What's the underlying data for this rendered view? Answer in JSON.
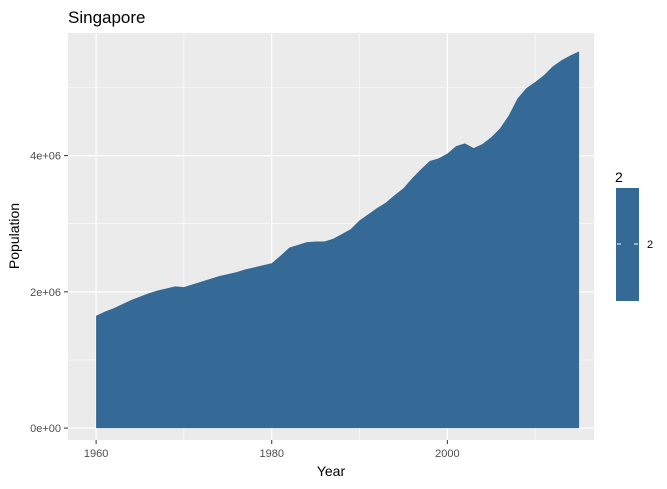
{
  "chart_data": {
    "type": "area",
    "title": "Singapore",
    "xlabel": "Year",
    "ylabel": "Population",
    "xlim": [
      1956.8,
      2016.7
    ],
    "ylim": [
      -175000,
      5800000
    ],
    "x_ticks": [
      1960,
      1980,
      2000
    ],
    "x_tick_labels": [
      "1960",
      "1980",
      "2000"
    ],
    "y_ticks": [
      0,
      2000000,
      4000000
    ],
    "y_tick_labels": [
      "0e+00",
      "2e+06",
      "4e+06"
    ],
    "grid": true,
    "legend": {
      "title": "2",
      "entries": [
        "2"
      ],
      "position": "right",
      "color": "#356a96"
    },
    "series": [
      {
        "fill": "#356a96",
        "x": [
          1960,
          1961,
          1962,
          1963,
          1964,
          1965,
          1966,
          1967,
          1968,
          1969,
          1970,
          1971,
          1972,
          1973,
          1974,
          1975,
          1976,
          1977,
          1978,
          1979,
          1980,
          1981,
          1982,
          1983,
          1984,
          1985,
          1986,
          1987,
          1988,
          1989,
          1990,
          1991,
          1992,
          1993,
          1994,
          1995,
          1996,
          1997,
          1998,
          1999,
          2000,
          2001,
          2002,
          2003,
          2004,
          2005,
          2006,
          2007,
          2008,
          2009,
          2010,
          2011,
          2012,
          2013,
          2014,
          2015
        ],
        "y": [
          1650000,
          1710000,
          1760000,
          1820000,
          1880000,
          1930000,
          1980000,
          2020000,
          2050000,
          2080000,
          2070000,
          2110000,
          2150000,
          2190000,
          2230000,
          2260000,
          2290000,
          2330000,
          2360000,
          2390000,
          2420000,
          2530000,
          2650000,
          2690000,
          2730000,
          2740000,
          2740000,
          2780000,
          2850000,
          2920000,
          3050000,
          3140000,
          3230000,
          3310000,
          3420000,
          3520000,
          3670000,
          3800000,
          3920000,
          3960000,
          4030000,
          4140000,
          4180000,
          4110000,
          4170000,
          4270000,
          4400000,
          4590000,
          4840000,
          4990000,
          5080000,
          5180000,
          5310000,
          5400000,
          5470000,
          5530000
        ]
      }
    ]
  },
  "colors": {
    "panel_background": "#ebebeb",
    "grid_major": "#ffffff",
    "area_fill": "#356a96",
    "axis_text": "#4d4d4d"
  }
}
